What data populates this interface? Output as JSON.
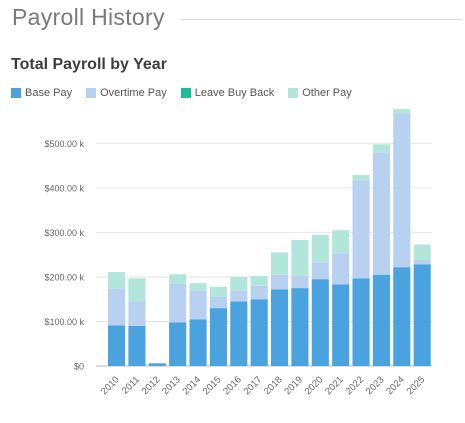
{
  "page": {
    "title": "Payroll History"
  },
  "legend": [
    {
      "label": "Base Pay",
      "color": "#4aa3df"
    },
    {
      "label": "Overtime Pay",
      "color": "#b8d1f0"
    },
    {
      "label": "Leave Buy Back",
      "color": "#1abc9c"
    },
    {
      "label": "Other Pay",
      "color": "#b2e6da"
    }
  ],
  "chart_data": {
    "type": "bar",
    "stacked": true,
    "title": "Total Payroll by Year",
    "xlabel": "",
    "ylabel": "",
    "categories": [
      "2010",
      "2011",
      "2012",
      "2013",
      "2014",
      "2015",
      "2016",
      "2017",
      "2018",
      "2019",
      "2020",
      "2021",
      "2022",
      "2023",
      "2024",
      "2025"
    ],
    "series": [
      {
        "name": "Base Pay",
        "color": "#4aa3df",
        "values": [
          91,
          90,
          6,
          98,
          105,
          130,
          145,
          150,
          172,
          175,
          195,
          183,
          197,
          205,
          222,
          228
        ]
      },
      {
        "name": "Overtime Pay",
        "color": "#b8d1f0",
        "values": [
          82,
          55,
          1,
          87,
          65,
          25,
          25,
          30,
          33,
          28,
          38,
          70,
          220,
          275,
          345,
          10
        ]
      },
      {
        "name": "Leave Buy Back",
        "color": "#1abc9c",
        "values": [
          0,
          0,
          0,
          0,
          0,
          0,
          0,
          0,
          0,
          0,
          0,
          0,
          0,
          0,
          0,
          0
        ]
      },
      {
        "name": "Other Pay",
        "color": "#b2e6da",
        "values": [
          38,
          52,
          0,
          21,
          16,
          23,
          30,
          22,
          50,
          80,
          62,
          52,
          12,
          18,
          10,
          35
        ]
      }
    ],
    "ylim": [
      0,
      575
    ],
    "yticks": [
      {
        "value": 0,
        "label": "$0"
      },
      {
        "value": 100,
        "label": "$100.00 k"
      },
      {
        "value": 200,
        "label": "$200.00 k"
      },
      {
        "value": 300,
        "label": "$300.00 k"
      },
      {
        "value": 400,
        "label": "$400.00 k"
      },
      {
        "value": 500,
        "label": "$500.00 k"
      }
    ],
    "grid": true,
    "legend_position": "top-left"
  }
}
